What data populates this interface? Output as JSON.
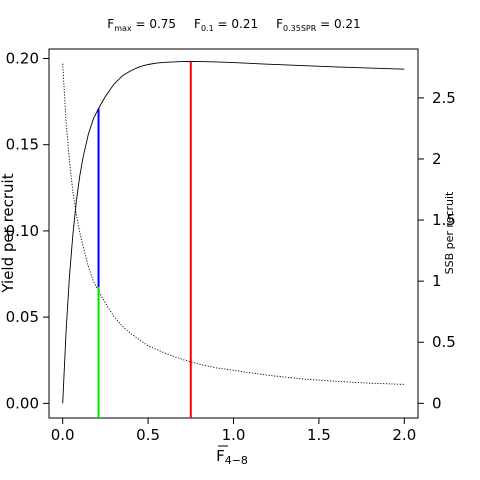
{
  "chart_data": {
    "type": "line",
    "header": {
      "items": [
        {
          "main": "F",
          "sub": "max",
          "value": " = 0.75"
        },
        {
          "main": "F",
          "sub": "0.1",
          "value": " = 0.21"
        },
        {
          "main": "F",
          "sub": "0.35SPR",
          "value": " = 0.21"
        }
      ]
    },
    "xlabel": {
      "main": "F",
      "sub": "4−8"
    },
    "ylabel_left": "Yield per recruit",
    "ylabel_right": "SSB per recruit",
    "xlim": [
      -0.08,
      2.08
    ],
    "ylim_left": [
      -0.0085,
      0.2055
    ],
    "ylim_right": [
      -0.12,
      2.9
    ],
    "x_ticks": [
      0.0,
      0.5,
      1.0,
      1.5,
      2.0
    ],
    "x_tick_labels": [
      "0.0",
      "0.5",
      "1.0",
      "1.5",
      "2.0"
    ],
    "y_left_ticks": [
      0.0,
      0.05,
      0.1,
      0.15,
      0.2
    ],
    "y_left_tick_labels": [
      "0.00",
      "0.05",
      "0.10",
      "0.15",
      "0.20"
    ],
    "y_right_ticks": [
      0,
      0.5,
      1,
      1.5,
      2,
      2.5
    ],
    "y_right_tick_labels": [
      "0",
      "0.5",
      "1",
      "1.5",
      "2",
      "2.5"
    ],
    "series": [
      {
        "axis": "left",
        "style": "solid",
        "color": "#000000",
        "x": [
          0.0,
          0.02,
          0.04,
          0.06,
          0.08,
          0.1,
          0.12,
          0.15,
          0.18,
          0.21,
          0.25,
          0.3,
          0.35,
          0.4,
          0.45,
          0.5,
          0.55,
          0.6,
          0.65,
          0.7,
          0.75,
          0.8,
          0.9,
          1.0,
          1.2,
          1.4,
          1.6,
          1.8,
          2.0
        ],
        "y": [
          0.0,
          0.042,
          0.074,
          0.098,
          0.117,
          0.132,
          0.143,
          0.156,
          0.165,
          0.171,
          0.178,
          0.185,
          0.19,
          0.193,
          0.1952,
          0.1965,
          0.1973,
          0.1978,
          0.198,
          0.1982,
          0.1983,
          0.1982,
          0.198,
          0.1976,
          0.1967,
          0.1959,
          0.1951,
          0.1944,
          0.1938
        ]
      },
      {
        "axis": "right",
        "style": "dotted",
        "color": "#000000",
        "x": [
          0.0,
          0.02,
          0.04,
          0.06,
          0.08,
          0.1,
          0.12,
          0.15,
          0.18,
          0.21,
          0.25,
          0.3,
          0.35,
          0.4,
          0.5,
          0.6,
          0.7,
          0.8,
          0.9,
          1.0,
          1.2,
          1.4,
          1.6,
          1.8,
          2.0
        ],
        "y": [
          2.78,
          2.3,
          1.98,
          1.73,
          1.55,
          1.4,
          1.28,
          1.12,
          1.0,
          0.92,
          0.82,
          0.71,
          0.63,
          0.57,
          0.47,
          0.41,
          0.36,
          0.32,
          0.29,
          0.27,
          0.23,
          0.2,
          0.18,
          0.165,
          0.155
        ]
      }
    ],
    "reference_lines": [
      {
        "name": "F0.1 yield",
        "x": 0.21,
        "y_from": 0.0675,
        "y_to": 0.171,
        "axis": "left",
        "color": "#0000ff"
      },
      {
        "name": "F0.35SPR SSB",
        "x": 0.21,
        "y_from": -0.0085,
        "y_to": 0.0675,
        "axis": "left",
        "color": "#00e000"
      },
      {
        "name": "Fmax",
        "x": 0.75,
        "y_from": -0.0085,
        "y_to": 0.1983,
        "axis": "left",
        "color": "#ff0000"
      }
    ],
    "grid": false,
    "legend": "none"
  }
}
